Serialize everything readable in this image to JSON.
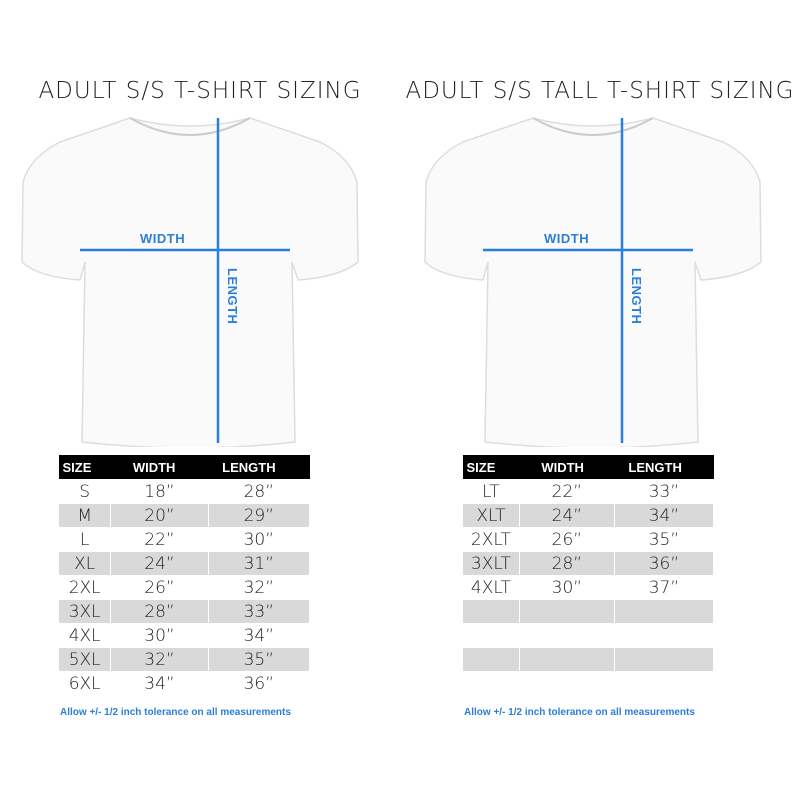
{
  "accent_color": "#2b7fd9",
  "charts": [
    {
      "title": "ADULT S/S T-SHIRT SIZING",
      "width_label": "WIDTH",
      "length_label": "LENGTH",
      "headers": [
        "SIZE",
        "WIDTH",
        "LENGTH"
      ],
      "rows": [
        [
          "S",
          "18”",
          "28”"
        ],
        [
          "M",
          "20”",
          "29”"
        ],
        [
          "L",
          "22”",
          "30”"
        ],
        [
          "XL",
          "24”",
          "31”"
        ],
        [
          "2XL",
          "26”",
          "32”"
        ],
        [
          "3XL",
          "28”",
          "33”"
        ],
        [
          "4XL",
          "30”",
          "34”"
        ],
        [
          "5XL",
          "32”",
          "35”"
        ],
        [
          "6XL",
          "34”",
          "36”"
        ]
      ],
      "note": "Allow +/- 1/2 inch tolerance on all measurements"
    },
    {
      "title": "ADULT S/S TALL T-SHIRT SIZING",
      "width_label": "WIDTH",
      "length_label": "LENGTH",
      "headers": [
        "SIZE",
        "WIDTH",
        "LENGTH"
      ],
      "rows": [
        [
          "LT",
          "22”",
          "33”"
        ],
        [
          "XLT",
          "24”",
          "34”"
        ],
        [
          "2XLT",
          "26”",
          "35”"
        ],
        [
          "3XLT",
          "28”",
          "36”"
        ],
        [
          "4XLT",
          "30”",
          "37”"
        ],
        [
          "",
          "",
          ""
        ],
        [
          "",
          "",
          ""
        ],
        [
          "",
          "",
          ""
        ],
        [
          "",
          "",
          ""
        ]
      ],
      "note": "Allow +/- 1/2 inch tolerance on all measurements"
    }
  ]
}
